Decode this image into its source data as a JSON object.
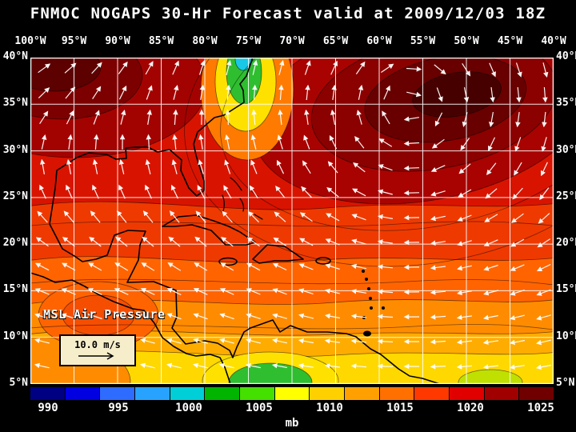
{
  "title": "FNMOC NOGAPS 30-Hr Forecast valid at 2009/12/03 18Z",
  "map": {
    "lon_labels": [
      "100°W",
      "95°W",
      "90°W",
      "85°W",
      "80°W",
      "75°W",
      "70°W",
      "65°W",
      "60°W",
      "55°W",
      "50°W",
      "45°W",
      "40°W"
    ],
    "lat_labels": [
      "40°N",
      "35°N",
      "30°N",
      "25°N",
      "20°N",
      "15°N",
      "10°N",
      "5°N"
    ],
    "field_label": "MSL Air Pressure",
    "wind_legend": "10.0 m/s"
  },
  "colorbar": {
    "tick_labels": [
      "990",
      "995",
      "1000",
      "1005",
      "1010",
      "1015",
      "1020",
      "1025"
    ],
    "unit": "mb",
    "colors": [
      "#000082",
      "#0000e0",
      "#2e6bff",
      "#27a3ff",
      "#00cfd8",
      "#00b400",
      "#44e000",
      "#ffff00",
      "#ffd000",
      "#ffa000",
      "#ff7000",
      "#ff3800",
      "#e00000",
      "#a00000",
      "#700000"
    ]
  },
  "chart_data": {
    "type": "heatmap",
    "title": "FNMOC NOGAPS 30-Hr Forecast valid at 2009/12/03 18Z",
    "field": "MSL Air Pressure",
    "unit": "mb",
    "colorbar_ticks": [
      990,
      995,
      1000,
      1005,
      1010,
      1015,
      1020,
      1025
    ],
    "x_ticks": [
      "100°W",
      "95°W",
      "90°W",
      "85°W",
      "80°W",
      "75°W",
      "70°W",
      "65°W",
      "60°W",
      "55°W",
      "50°W",
      "45°W",
      "40°W"
    ],
    "y_ticks": [
      "40°N",
      "35°N",
      "30°N",
      "25°N",
      "20°N",
      "15°N",
      "10°N",
      "5°N"
    ],
    "wind_reference": "10.0 m/s",
    "grid": "on",
    "legend_position": "bottom"
  }
}
